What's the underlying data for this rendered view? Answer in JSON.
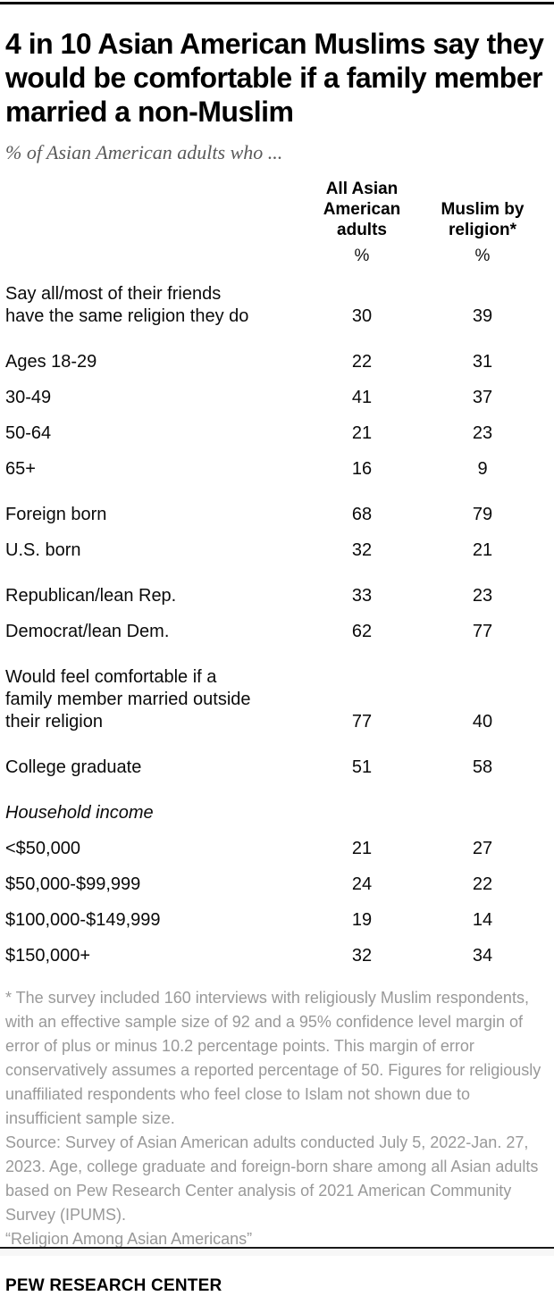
{
  "colors": {
    "title": "#000000",
    "subtitle_gray": "#5a5a5a",
    "footnote_gray": "#999999",
    "rule_black": "#000000"
  },
  "chart_data": {
    "type": "table",
    "title": "4 in 10 Asian American Muslims say they would be comfortable if a family member married a non-Muslim",
    "subtitle": "% of Asian American adults who ...",
    "columns": [
      {
        "label": "All Asian American adults",
        "display": "All Asian\nAmerican\nadults",
        "unit": "%"
      },
      {
        "label": "Muslim by religion*",
        "display": "Muslim by\nreligion*",
        "unit": "%"
      }
    ],
    "rows": [
      {
        "label": "Say all/most of their friends\nhave the same religion they do",
        "values": [
          30,
          39
        ],
        "first": true
      },
      {
        "label": "Ages 18-29",
        "values": [
          22,
          31
        ],
        "group_start": true
      },
      {
        "label": "30-49",
        "values": [
          41,
          37
        ]
      },
      {
        "label": "50-64",
        "values": [
          21,
          23
        ]
      },
      {
        "label": "65+",
        "values": [
          16,
          9
        ]
      },
      {
        "label": "Foreign born",
        "values": [
          68,
          79
        ],
        "group_start": true
      },
      {
        "label": "U.S. born",
        "values": [
          32,
          21
        ]
      },
      {
        "label": "Republican/lean Rep.",
        "values": [
          33,
          23
        ],
        "group_start": true
      },
      {
        "label": "Democrat/lean Dem.",
        "values": [
          62,
          77
        ]
      },
      {
        "label": "Would feel comfortable if a\nfamily member married outside\ntheir religion",
        "values": [
          77,
          40
        ],
        "group_start": true
      },
      {
        "label": "College graduate",
        "values": [
          51,
          58
        ],
        "group_start": true
      },
      {
        "label": "Household income",
        "values": [],
        "section_header": true,
        "group_start": true
      },
      {
        "label": "<$50,000",
        "values": [
          21,
          27
        ]
      },
      {
        "label": "$50,000-$99,999",
        "values": [
          24,
          22
        ]
      },
      {
        "label": "$100,000-$149,999",
        "values": [
          19,
          14
        ]
      },
      {
        "label": "$150,000+",
        "values": [
          32,
          34
        ]
      }
    ]
  },
  "footnotes": {
    "asterisk": "* The survey included 160 interviews with religiously Muslim respondents, with an effective sample size of 92 and a 95% confidence level margin of error of plus or minus 10.2 percentage points. This margin of error conservatively assumes a reported percentage of 50. Figures for religiously unaffiliated respondents who feel close to Islam not shown due to insufficient sample size.",
    "source": "Source: Survey of Asian American adults conducted July 5, 2022-Jan. 27, 2023. Age, college graduate and foreign-born share among all Asian adults based on Pew Research Center analysis of 2021 American Community Survey (IPUMS).",
    "citation": "“Religion Among Asian Americans”"
  },
  "footer": {
    "brand": "PEW RESEARCH CENTER"
  }
}
